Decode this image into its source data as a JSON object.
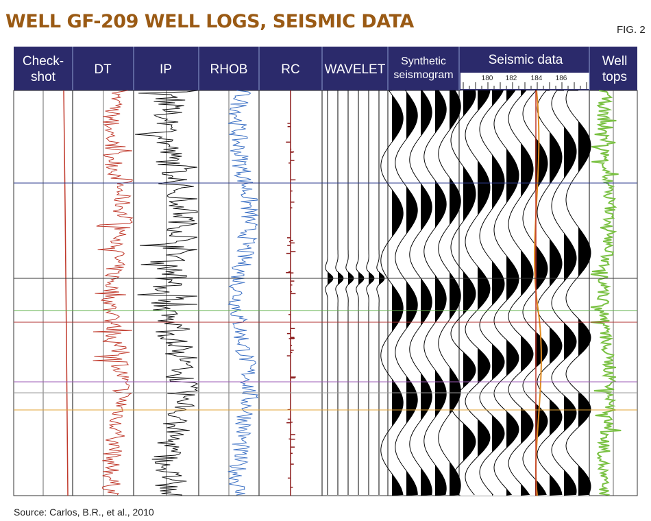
{
  "title": "WELL GF-209 WELL LOGS, SEISMIC DATA",
  "fig_label": "FIG. 2",
  "source": "Source: Carlos, B.R., et al., 2010",
  "columns": {
    "checkshot": [
      "Check-",
      "shot"
    ],
    "dt": "DT",
    "ip": "IP",
    "rhob": "RHOB",
    "rc": "RC",
    "wavelet": "WAVELET",
    "synthetic": [
      "Synthetic",
      "seismogram"
    ],
    "seismic": "Seismic data",
    "welltops": [
      "Well",
      "tops"
    ]
  },
  "seismic_ticks": [
    "180",
    "182",
    "184",
    "186"
  ],
  "colors": {
    "header_bg": "#2b2a6b",
    "title": "#9a5a14",
    "checkshot": "#c0392b",
    "dt": "#c0392b",
    "ip": "#111111",
    "rhob": "#3a6fc4",
    "rc": "#8b1a1a",
    "welltops_curve": "#7ac143",
    "well_trace": "#c0392b"
  },
  "well_top_colors": [
    "#2b3a8c",
    "#333333",
    "#5fb04a",
    "#b03030",
    "#9b59b6",
    "#999999",
    "#e0a030"
  ]
}
